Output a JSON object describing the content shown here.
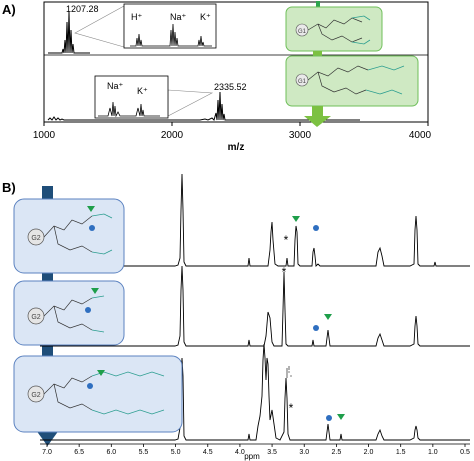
{
  "panel_a": {
    "label": "A)",
    "xlabel": "m/z",
    "ticks": [
      "1000",
      "2000",
      "3000",
      "4000"
    ],
    "peak_top": "1207.28",
    "peak_bottom": "2335.52",
    "ions_top": [
      "H⁺",
      "Na⁺",
      "K⁺"
    ],
    "ions_bottom": [
      "Na⁺",
      "K⁺"
    ],
    "gen_top": "G1",
    "gen_bottom": "G1"
  },
  "panel_b": {
    "label": "B)",
    "xlabel": "ppm",
    "ticks": [
      "7.0",
      "6.5",
      "6.0",
      "5.5",
      "5.0",
      "4.5",
      "4.0",
      "3.5",
      "3.0",
      "2.5",
      "2.0",
      "1.5",
      "1.0",
      "0.5"
    ],
    "gen_labels": [
      "G2",
      "G2",
      "G2"
    ],
    "star": "*"
  },
  "colors": {
    "green_box_fill": "#cfe9c3",
    "green_box_stroke": "#6fbf5a",
    "blue_box_fill": "#dbe6f5",
    "blue_box_stroke": "#5b82c0",
    "arrow_blue": "#1f4e79",
    "arrow_green": "#7cc142",
    "marker_green": "#1e9e4a",
    "marker_blue": "#2f6fc0",
    "chem_teal": "#2a9d8f"
  },
  "chart_data": [
    {
      "type": "line",
      "title": "",
      "xlabel": "m/z",
      "ylabel": "",
      "xlim": [
        1000,
        4000
      ],
      "series": [
        {
          "x": [
            1207.28
          ],
          "y": [
            1.0
          ]
        },
        {
          "x": [
            2335.52
          ],
          "y": [
            1.0
          ]
        }
      ]
    },
    {
      "type": "line",
      "title": "",
      "xlabel": "ppm",
      "ylabel": "",
      "xlim": [
        7.0,
        0.5
      ],
      "series": [
        {
          "x": [
            4.9,
            3.55,
            3.3,
            3.2,
            2.8,
            2.75,
            1.9,
            1.25
          ],
          "y": [
            1.0,
            0.55,
            0.25,
            0.35,
            0.3,
            0.2,
            0.12,
            0.5
          ]
        },
        {
          "x": [
            4.9,
            3.55,
            3.35,
            2.85,
            2.7,
            1.9,
            1.25
          ],
          "y": [
            0.8,
            0.35,
            0.85,
            0.1,
            0.2,
            0.12,
            0.35
          ]
        },
        {
          "x": [
            4.9,
            3.7,
            3.6,
            3.35,
            2.65,
            2.5,
            1.9,
            1.25
          ],
          "y": [
            0.9,
            1.0,
            0.85,
            0.3,
            0.1,
            0.08,
            0.05,
            0.1
          ]
        }
      ]
    }
  ]
}
